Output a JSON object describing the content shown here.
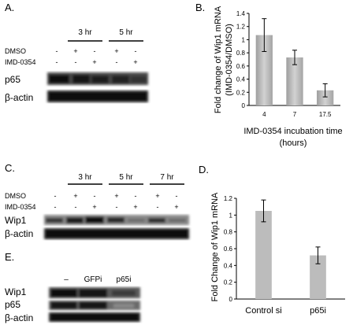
{
  "panels": {
    "A": {
      "label": "A.",
      "timepoints": [
        "3 hr",
        "5 hr"
      ],
      "rows": [
        {
          "name": "DMSO",
          "signs": [
            "-",
            "+",
            "-",
            "+",
            "-"
          ]
        },
        {
          "name": "IMD-0354",
          "signs": [
            "-",
            "-",
            "+",
            "-",
            "+"
          ]
        }
      ],
      "blots": [
        "p65",
        "β-actin"
      ]
    },
    "B": {
      "label": "B."
    },
    "C": {
      "label": "C.",
      "timepoints": [
        "3 hr",
        "5 hr",
        "7 hr"
      ],
      "rows": [
        {
          "name": "DMSO",
          "signs": [
            "-",
            "+",
            "-",
            "+",
            "-",
            "+",
            "-"
          ]
        },
        {
          "name": "IMD-0354",
          "signs": [
            "-",
            "-",
            "+",
            "-",
            "+",
            "-",
            "+"
          ]
        }
      ],
      "blots": [
        "Wip1",
        "β-actin"
      ]
    },
    "D": {
      "label": "D."
    },
    "E": {
      "label": "E.",
      "lanes": [
        "–",
        "GFPi",
        "p65i"
      ],
      "blots": [
        "Wip1",
        "p65",
        "β-actin"
      ]
    }
  },
  "chart_data": [
    {
      "panel": "B",
      "type": "bar",
      "categories": [
        "4",
        "7",
        "17.5"
      ],
      "values": [
        1.07,
        0.73,
        0.23
      ],
      "errors": [
        0.25,
        0.11,
        0.1
      ],
      "ylabel": "Fold change of Wip1 mRNA (IMD-0354/DMSO)",
      "xlabel": "IMD-0354 incubation time (hours)",
      "ylim": [
        0,
        1.4
      ],
      "yticks": [
        "0",
        "0.2",
        "0.4",
        "0.6",
        "0.8",
        "1",
        "1.2",
        "1.4"
      ],
      "bar_color": "#b8b8b8"
    },
    {
      "panel": "D",
      "type": "bar",
      "categories": [
        "Control si",
        "p65i"
      ],
      "values": [
        1.05,
        0.52
      ],
      "errors": [
        0.13,
        0.1
      ],
      "ylabel": "Fold Change of Wip1 mRNA",
      "xlabel": "",
      "ylim": [
        0,
        1.2
      ],
      "yticks": [
        "0",
        "0.2",
        "0.4",
        "0.6",
        "0.8",
        "1",
        "1.2"
      ],
      "bar_color": "#bcbcbc"
    }
  ]
}
